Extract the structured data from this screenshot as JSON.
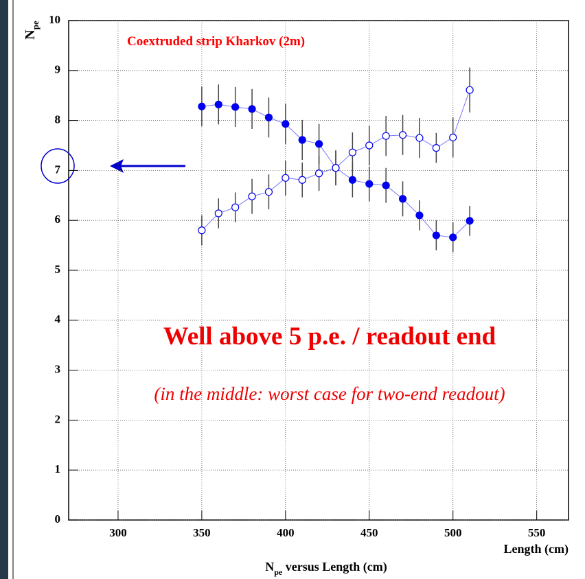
{
  "chart_data": {
    "type": "line",
    "title": "Coextruded strip Kharkov (2m)",
    "annotations": [
      "Well above 5 p.e. / readout end",
      "(in the middle: worst case for two-end readout)"
    ],
    "y_label": {
      "main": "N",
      "sub": "pe"
    },
    "x_label": "Length (cm)",
    "caption": {
      "main": "N",
      "sub": "pe",
      "rest": " versus Length (cm)"
    },
    "x": [
      350,
      360,
      370,
      380,
      390,
      400,
      410,
      420,
      430,
      440,
      450,
      460,
      470,
      480,
      490,
      500,
      510
    ],
    "series": [
      {
        "color": "#0000ee",
        "marker": "filled",
        "values": [
          8.28,
          8.32,
          8.27,
          8.23,
          8.06,
          7.93,
          7.61,
          7.53,
          7.05,
          6.81,
          6.73,
          6.7,
          6.43,
          6.1,
          5.7,
          5.66,
          5.99
        ],
        "errors": [
          0.4,
          0.4,
          0.4,
          0.4,
          0.4,
          0.4,
          0.4,
          0.4,
          0.35,
          0.35,
          0.35,
          0.35,
          0.35,
          0.3,
          0.3,
          0.3,
          0.3
        ]
      },
      {
        "color": "#0000ee",
        "marker": "open",
        "values": [
          5.8,
          6.14,
          6.26,
          6.48,
          6.57,
          6.85,
          6.81,
          6.94,
          7.05,
          7.36,
          7.5,
          7.69,
          7.71,
          7.65,
          7.45,
          7.66,
          8.61
        ],
        "errors": [
          0.3,
          0.3,
          0.3,
          0.35,
          0.35,
          0.35,
          0.35,
          0.35,
          0.35,
          0.4,
          0.4,
          0.4,
          0.4,
          0.4,
          0.3,
          0.4,
          0.45
        ]
      }
    ],
    "xlim": [
      270.5,
      569
    ],
    "xticks": [
      300,
      350,
      400,
      450,
      500,
      550
    ],
    "ylim": [
      0,
      10
    ],
    "yticks": [
      0,
      1,
      2,
      3,
      4,
      5,
      6,
      7,
      8,
      9,
      10
    ],
    "grid": true
  }
}
